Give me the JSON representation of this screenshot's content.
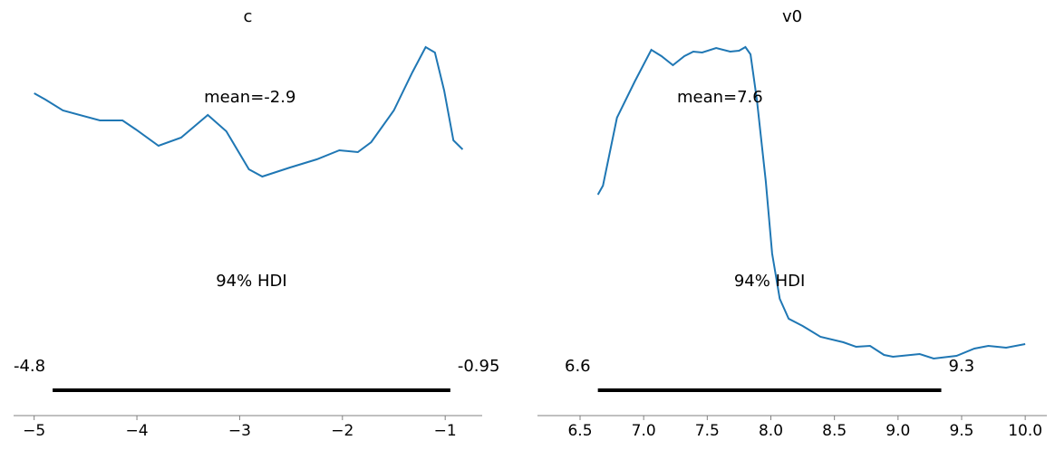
{
  "chart_data": [
    {
      "type": "line",
      "title": "c",
      "color": "#1f77b4",
      "x": [
        -5.0,
        -4.89,
        -4.72,
        -4.36,
        -4.14,
        -4.01,
        -3.79,
        -3.57,
        -3.31,
        -3.13,
        -2.91,
        -2.78,
        -2.51,
        -2.25,
        -2.03,
        -1.85,
        -1.72,
        -1.5,
        -1.32,
        -1.19,
        -1.1,
        -1.01,
        -0.92,
        -0.83
      ],
      "values": [
        3.56,
        3.49,
        3.37,
        3.26,
        3.26,
        3.16,
        2.98,
        3.07,
        3.32,
        3.14,
        2.72,
        2.64,
        2.74,
        2.83,
        2.93,
        2.91,
        3.02,
        3.37,
        3.79,
        4.07,
        4.01,
        3.59,
        3.04,
        2.94
      ],
      "xlim": [
        -5.2,
        -0.64
      ],
      "ylim": [
        0,
        4.09
      ],
      "xticks": [
        {
          "value": -5,
          "label": "−5"
        },
        {
          "value": -4,
          "label": "−4"
        },
        {
          "value": -3,
          "label": "−3"
        },
        {
          "value": -2,
          "label": "−2"
        },
        {
          "value": -1,
          "label": "−1"
        }
      ],
      "mean": {
        "value": -2.9,
        "label": "mean=-2.9"
      },
      "hdi_label": "94% HDI",
      "hdi": [
        {
          "value": -4.82,
          "label": "-4.8"
        },
        {
          "value": -0.95,
          "label": "-0.95"
        }
      ]
    },
    {
      "type": "line",
      "title": "v0",
      "color": "#1f77b4",
      "x": [
        6.64,
        6.68,
        6.79,
        6.93,
        7.06,
        7.14,
        7.23,
        7.32,
        7.39,
        7.46,
        7.57,
        7.68,
        7.75,
        7.8,
        7.84,
        7.89,
        7.96,
        8.01,
        8.07,
        8.14,
        8.25,
        8.39,
        8.57,
        8.67,
        8.78,
        8.89,
        8.96,
        9.17,
        9.28,
        9.46,
        9.6,
        9.71,
        9.85,
        10.0
      ],
      "values": [
        2.44,
        2.54,
        3.29,
        3.69,
        4.04,
        3.97,
        3.87,
        3.97,
        4.02,
        4.01,
        4.06,
        4.02,
        4.03,
        4.07,
        3.99,
        3.49,
        2.59,
        1.79,
        1.29,
        1.07,
        0.99,
        0.87,
        0.81,
        0.76,
        0.77,
        0.67,
        0.65,
        0.68,
        0.63,
        0.66,
        0.74,
        0.77,
        0.75,
        0.79
      ],
      "xlim": [
        6.165,
        10.17
      ],
      "ylim": [
        0,
        4.09
      ],
      "xticks": [
        6.5,
        {
          "value": 7.0,
          "label": "7.0"
        },
        7.5,
        {
          "value": 8.0,
          "label": "8.0"
        },
        8.5,
        {
          "value": 9.0,
          "label": "9.0"
        },
        9.5,
        {
          "value": 10.0,
          "label": "10.0"
        }
      ],
      "mean": {
        "value": 7.6,
        "label": "mean=7.6"
      },
      "hdi_label": "94% HDI",
      "hdi": [
        {
          "value": 6.64,
          "label": "6.6"
        },
        {
          "value": 9.34,
          "label": "9.3"
        }
      ]
    }
  ]
}
